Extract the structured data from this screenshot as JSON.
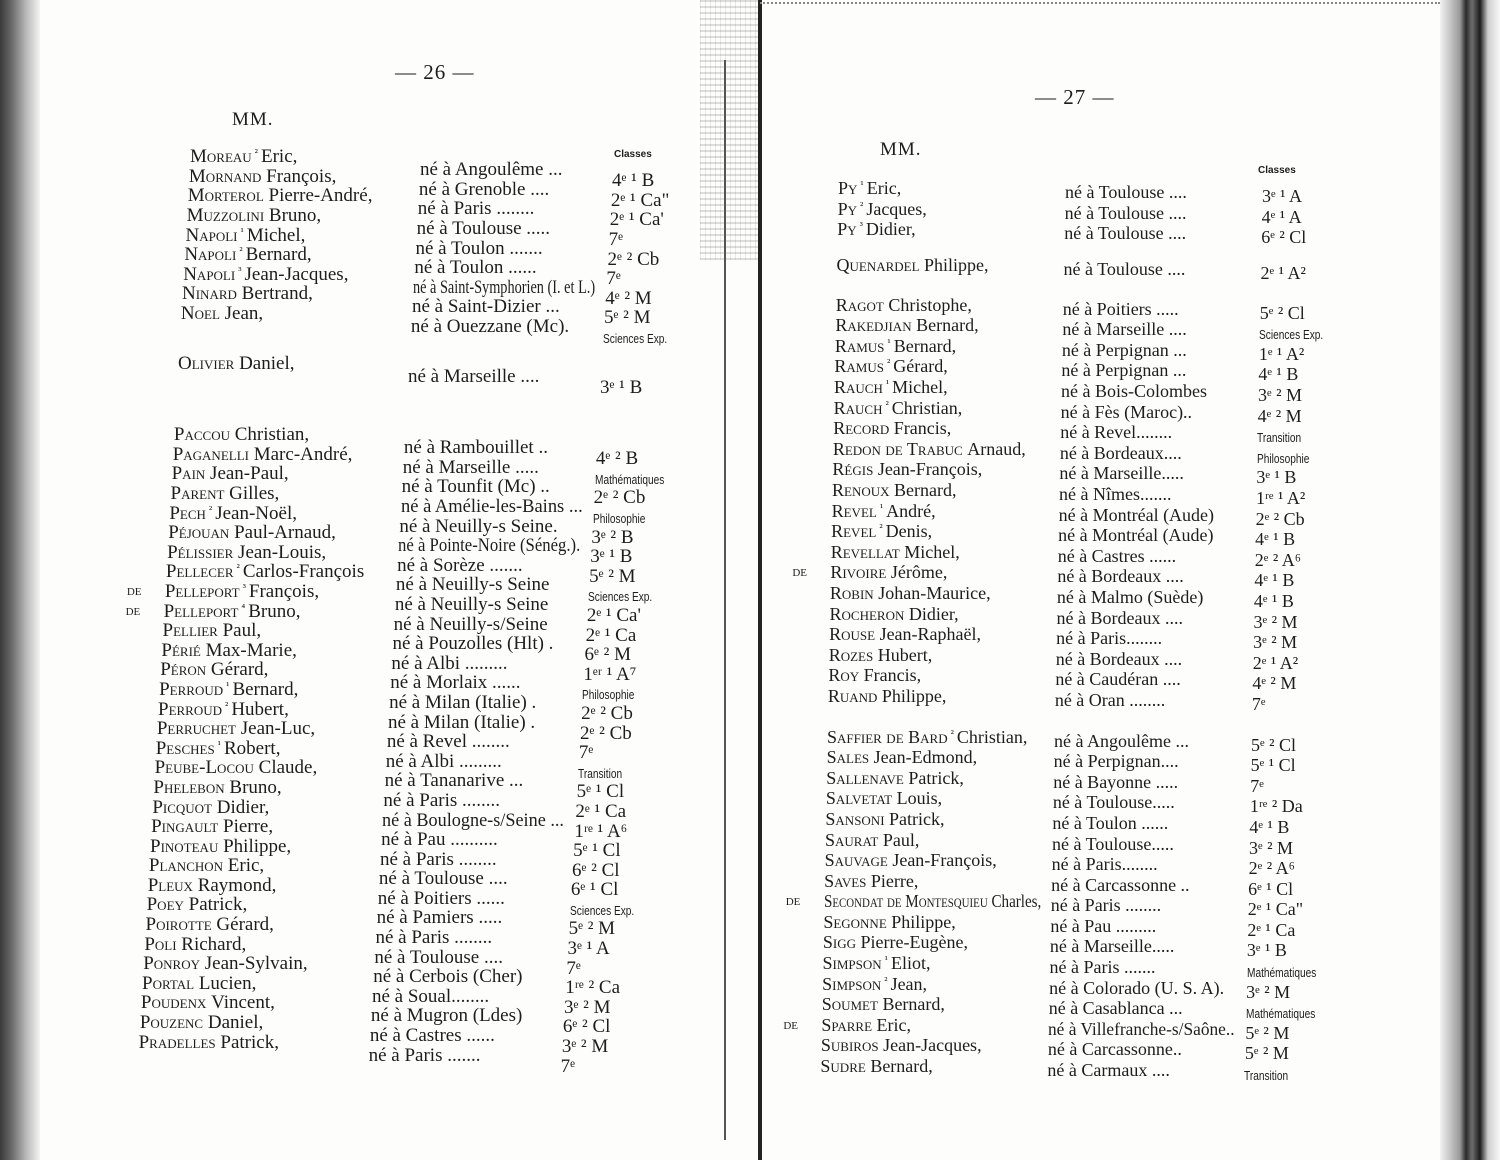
{
  "left_page": {
    "page_number": "— 26 —",
    "salutation": "MM.",
    "classes_header": "Classes",
    "sections": [
      [
        {
          "n": "Moreau",
          "s": "²",
          "g": "Eric,",
          "p": "né à Angoulême ...",
          "c": "4ᵉ ¹ B"
        },
        {
          "n": "Mornand",
          "s": "",
          "g": "François,",
          "p": "né à Grenoble ....",
          "c": "2ᵉ ¹ Ca\""
        },
        {
          "n": "Morterol",
          "s": "",
          "g": "Pierre-André,",
          "p": "né à Paris ........",
          "c": "2ᵉ ¹ Ca'"
        },
        {
          "n": "Muzzolini",
          "s": "",
          "g": "Bruno,",
          "p": "né à Toulouse .....",
          "c": "7ᵉ"
        },
        {
          "n": "Napoli",
          "s": "¹",
          "g": "Michel,",
          "p": "né à Toulon .......",
          "c": "2ᵉ ² Cb"
        },
        {
          "n": "Napoli",
          "s": "²",
          "g": "Bernard,",
          "p": "né à Toulon ......",
          "c": "7ᵉ"
        },
        {
          "n": "Napoli",
          "s": "³",
          "g": "Jean-Jacques,",
          "p": "né à Saint-Symphorien (I. et L.)",
          "c": "4ᵉ ² M"
        },
        {
          "n": "Ninard",
          "s": "",
          "g": "Bertrand,",
          "p": "né à Saint-Dizier ...",
          "c": "5ᵉ ² M"
        },
        {
          "n": "Noel",
          "s": "",
          "g": "Jean,",
          "p": "né à Ouezzane (Mc).",
          "c": "Sciences Exp."
        }
      ],
      [
        {
          "n": "Olivier",
          "s": "",
          "g": "Daniel,",
          "p": "né à Marseille ....",
          "c": "3ᵉ ¹ B"
        }
      ],
      [
        {
          "n": "Paccou",
          "s": "",
          "g": "Christian,",
          "p": "né à Rambouillet ..",
          "c": "4ᵉ ² B"
        },
        {
          "n": "Paganelli",
          "s": "",
          "g": "Marc-André,",
          "p": "né à Marseille .....",
          "c": "Mathématiques"
        },
        {
          "n": "Pain",
          "s": "",
          "g": "Jean-Paul,",
          "p": "né à Tounfit (Mc) ..",
          "c": "2ᵉ ² Cb"
        },
        {
          "n": "Parent",
          "s": "",
          "g": "Gilles,",
          "p": "né à Amélie-les-Bains ...",
          "c": "Philosophie"
        },
        {
          "n": "Pech",
          "s": "²",
          "g": "Jean-Noël,",
          "p": "né à Neuilly-s Seine.",
          "c": "3ᵉ ² B"
        },
        {
          "n": "Péjouan",
          "s": "",
          "g": "Paul-Arnaud,",
          "p": "né à Pointe-Noire (Sénég.).",
          "c": "3ᵉ ¹ B"
        },
        {
          "n": "Pélissier",
          "s": "",
          "g": "Jean-Louis,",
          "p": "né à Sorèze .......",
          "c": "5ᵉ ² M"
        },
        {
          "n": "Pellecer",
          "s": "²",
          "g": "Carlos-François",
          "p": "né à Neuilly-s Seine",
          "c": "Sciences Exp."
        },
        {
          "pre": "de",
          "n": "Pelleport",
          "s": "³",
          "g": "François,",
          "p": "né à Neuilly-s Seine",
          "c": "2ᵉ ¹ Ca'"
        },
        {
          "pre": "de",
          "n": "Pelleport",
          "s": "⁴",
          "g": "Bruno,",
          "p": "né à Neuilly-s/Seine",
          "c": "2ᵉ ¹ Ca"
        },
        {
          "n": "Pellier",
          "s": "",
          "g": "Paul,",
          "p": "né à Pouzolles (Hlt) .",
          "c": "6ᵉ ² M"
        },
        {
          "n": "Périé",
          "s": "",
          "g": "Max-Marie,",
          "p": "né à Albi .........",
          "c": "1ᵉʳ ¹ A⁷"
        },
        {
          "n": "Péron",
          "s": "",
          "g": "Gérard,",
          "p": "né à Morlaix ......",
          "c": "Philosophie"
        },
        {
          "n": "Perroud",
          "s": "¹",
          "g": "Bernard,",
          "p": "né à Milan (Italie) .",
          "c": "2ᵉ ² Cb"
        },
        {
          "n": "Perroud",
          "s": "²",
          "g": "Hubert,",
          "p": "né à Milan (Italie) .",
          "c": "2ᵉ ² Cb"
        },
        {
          "n": "Perruchet",
          "s": "",
          "g": "Jean-Luc,",
          "p": "né à Revel ........",
          "c": "7ᵉ"
        },
        {
          "n": "Pesches",
          "s": "¹",
          "g": "Robert,",
          "p": "né à Albi .........",
          "c": "Transition"
        },
        {
          "n": "Peube-Locou",
          "s": "",
          "g": "Claude,",
          "p": "né à Tananarive ...",
          "c": "5ᵉ ¹ Cl"
        },
        {
          "n": "Phelebon",
          "s": "",
          "g": "Bruno,",
          "p": "né à Paris ........",
          "c": "2ᵉ ¹ Ca"
        },
        {
          "n": "Picquot",
          "s": "",
          "g": "Didier,",
          "p": "né à Boulogne-s/Seine ...",
          "c": "1ʳᵉ ¹ A⁶"
        },
        {
          "n": "Pingault",
          "s": "",
          "g": "Pierre,",
          "p": "né à Pau ..........",
          "c": "5ᵉ ¹ Cl"
        },
        {
          "n": "Pinoteau",
          "s": "",
          "g": "Philippe,",
          "p": "né à Paris ........",
          "c": "6ᵉ ² Cl"
        },
        {
          "n": "Planchon",
          "s": "",
          "g": "Eric,",
          "p": "né à Toulouse ....",
          "c": "6ᵉ ¹ Cl"
        },
        {
          "n": "Pleux",
          "s": "",
          "g": "Raymond,",
          "p": "né à Poitiers ......",
          "c": "Sciences Exp."
        },
        {
          "n": "Poey",
          "s": "",
          "g": "Patrick,",
          "p": "né à Pamiers .....",
          "c": "5ᵉ ² M"
        },
        {
          "n": "Poirotte",
          "s": "",
          "g": "Gérard,",
          "p": "né à Paris ........",
          "c": "3ᵉ ¹ A"
        },
        {
          "n": "Poli",
          "s": "",
          "g": "Richard,",
          "p": "né à Toulouse ....",
          "c": "7ᵉ"
        },
        {
          "n": "Ponroy",
          "s": "",
          "g": "Jean-Sylvain,",
          "p": "né à Cerbois (Cher)",
          "c": "1ʳᵉ ² Ca"
        },
        {
          "n": "Portal",
          "s": "",
          "g": "Lucien,",
          "p": "né à Soual........",
          "c": "3ᵉ ² M"
        },
        {
          "n": "Poudenx",
          "s": "",
          "g": "Vincent,",
          "p": "né à Mugron (Ldes)",
          "c": "6ᵉ ² Cl"
        },
        {
          "n": "Pouzenc",
          "s": "",
          "g": "Daniel,",
          "p": "né à Castres ......",
          "c": "3ᵉ ² M"
        },
        {
          "n": "Pradelles",
          "s": "",
          "g": "Patrick,",
          "p": "né à Paris .......",
          "c": "7ᵉ"
        }
      ]
    ]
  },
  "right_page": {
    "page_number": "— 27 —",
    "salutation": "MM.",
    "classes_header": "Classes",
    "sections": [
      [
        {
          "n": "Py",
          "s": "¹",
          "g": "Eric,",
          "p": "né à Toulouse ....",
          "c": "3ᵉ ¹ A"
        },
        {
          "n": "Py",
          "s": "²",
          "g": "Jacques,",
          "p": "né à Toulouse ....",
          "c": "4ᵉ ¹ A"
        },
        {
          "n": "Py",
          "s": "³",
          "g": "Didier,",
          "p": "né à Toulouse ....",
          "c": "6ᵉ ² Cl"
        }
      ],
      [
        {
          "n": "Quenardel",
          "s": "",
          "g": "Philippe,",
          "p": "né à Toulouse ....",
          "c": "2ᵉ ¹ A²"
        }
      ],
      [
        {
          "n": "Ragot",
          "s": "",
          "g": "Christophe,",
          "p": "né à Poitiers .....",
          "c": "5ᵉ ² Cl"
        },
        {
          "n": "Rakedjian",
          "s": "",
          "g": "Bernard,",
          "p": "né à Marseille ....",
          "c": "Sciences Exp."
        },
        {
          "n": "Ramus",
          "s": "¹",
          "g": "Bernard,",
          "p": "né à Perpignan ...",
          "c": "1ᵉ ¹ A²"
        },
        {
          "n": "Ramus",
          "s": "²",
          "g": "Gérard,",
          "p": "né à Perpignan ...",
          "c": "4ᵉ ¹ B"
        },
        {
          "n": "Rauch",
          "s": "¹",
          "g": "Michel,",
          "p": "né à Bois-Colombes",
          "c": "3ᵉ ² M"
        },
        {
          "n": "Rauch",
          "s": "²",
          "g": "Christian,",
          "p": "né à Fès (Maroc)..",
          "c": "4ᵉ ² M"
        },
        {
          "n": "Record",
          "s": "",
          "g": "Francis,",
          "p": "né à Revel........",
          "c": "Transition"
        },
        {
          "n": "Redon de Trabuc",
          "s": "",
          "g": "Arnaud,",
          "p": "né à Bordeaux....",
          "c": "Philosophie"
        },
        {
          "n": "Régis",
          "s": "",
          "g": "Jean-François,",
          "p": "né à Marseille.....",
          "c": "3ᵉ ¹ B"
        },
        {
          "n": "Renoux",
          "s": "",
          "g": "Bernard,",
          "p": "né à Nîmes.......",
          "c": "1ʳᵉ ¹ A²"
        },
        {
          "n": "Revel",
          "s": "¹",
          "g": "André,",
          "p": "né à Montréal (Aude)",
          "c": "2ᵉ ² Cb"
        },
        {
          "n": "Revel",
          "s": "²",
          "g": "Denis,",
          "p": "né à Montréal (Aude)",
          "c": "4ᵉ ¹ B"
        },
        {
          "n": "Revellat",
          "s": "",
          "g": "Michel,",
          "p": "né à Castres ......",
          "c": "2ᵉ ² A⁶"
        },
        {
          "pre": "de",
          "n": "Rivoire",
          "s": "",
          "g": "Jérôme,",
          "p": "né à Bordeaux ....",
          "c": "4ᵉ ¹ B"
        },
        {
          "n": "Robin",
          "s": "",
          "g": "Johan-Maurice,",
          "p": "né à Malmo (Suède)",
          "c": "4ᵉ ¹ B"
        },
        {
          "n": "Rocheron",
          "s": "",
          "g": "Didier,",
          "p": "né à Bordeaux ....",
          "c": "3ᵉ ² M"
        },
        {
          "n": "Rouse",
          "s": "",
          "g": "Jean-Raphaël,",
          "p": "né à Paris........",
          "c": "3ᵉ ² M"
        },
        {
          "n": "Rozes",
          "s": "",
          "g": "Hubert,",
          "p": "né à Bordeaux ....",
          "c": "2ᵉ ¹ A²"
        },
        {
          "n": "Roy",
          "s": "",
          "g": "Francis,",
          "p": "né à Caudéran ....",
          "c": "4ᵉ ² M"
        },
        {
          "n": "Ruand",
          "s": "",
          "g": "Philippe,",
          "p": "né à Oran ........",
          "c": "7ᵉ"
        }
      ],
      [
        {
          "n": "Saffier de Bard",
          "s": "²",
          "g": "Christian,",
          "p": "né à Angoulême ...",
          "c": "5ᵉ ² Cl"
        },
        {
          "n": "Sales",
          "s": "",
          "g": "Jean-Edmond,",
          "p": "né à Perpignan....",
          "c": "5ᵉ ¹ Cl"
        },
        {
          "n": "Sallenave",
          "s": "",
          "g": "Patrick,",
          "p": "né à Bayonne .....",
          "c": "7ᵉ"
        },
        {
          "n": "Salvetat",
          "s": "",
          "g": "Louis,",
          "p": "né à Toulouse.....",
          "c": "1ʳᵉ ² Da"
        },
        {
          "n": "Sansoni",
          "s": "",
          "g": "Patrick,",
          "p": "né à Toulon ......",
          "c": "4ᵉ ¹ B"
        },
        {
          "n": "Saurat",
          "s": "",
          "g": "Paul,",
          "p": "né à Toulouse.....",
          "c": "3ᵉ ² M"
        },
        {
          "n": "Sauvage",
          "s": "",
          "g": "Jean-François,",
          "p": "né à Paris........",
          "c": "2ᵉ ² A⁶"
        },
        {
          "n": "Saves",
          "s": "",
          "g": "Pierre,",
          "p": "né à Carcassonne ..",
          "c": "6ᵉ ¹ Cl"
        },
        {
          "pre": "de",
          "n": "Secondat de Montesquieu",
          "s": "",
          "g": "Charles,",
          "p": "né à Paris ........",
          "c": "2ᵉ ¹ Ca\""
        },
        {
          "n": "Segonne",
          "s": "",
          "g": "Philippe,",
          "p": "né à Pau .........",
          "c": "2ᵉ ¹ Ca"
        },
        {
          "n": "Sigg",
          "s": "",
          "g": "Pierre-Eugène,",
          "p": "né à Marseille.....",
          "c": "3ᵉ ¹ B"
        },
        {
          "n": "Simpson",
          "s": "¹",
          "g": "Eliot,",
          "p": "né à Paris .......",
          "c": "Mathématiques"
        },
        {
          "n": "Simpson",
          "s": "²",
          "g": "Jean,",
          "p": "né à Colorado (U. S. A).",
          "c": "3ᵉ ² M"
        },
        {
          "n": "Soumet",
          "s": "",
          "g": "Bernard,",
          "p": "né à Casablanca ...",
          "c": "Mathématiques"
        },
        {
          "pre": "de",
          "n": "Sparre",
          "s": "",
          "g": "Eric,",
          "p": "né à Villefranche-s/Saône..",
          "c": "5ᵉ ² M"
        },
        {
          "n": "Subiros",
          "s": "",
          "g": "Jean-Jacques,",
          "p": "né à Carcassonne..",
          "c": "5ᵉ ² M"
        },
        {
          "n": "Sudre",
          "s": "",
          "g": "Bernard,",
          "p": "né à Carmaux ....",
          "c": "Transition"
        }
      ]
    ]
  }
}
